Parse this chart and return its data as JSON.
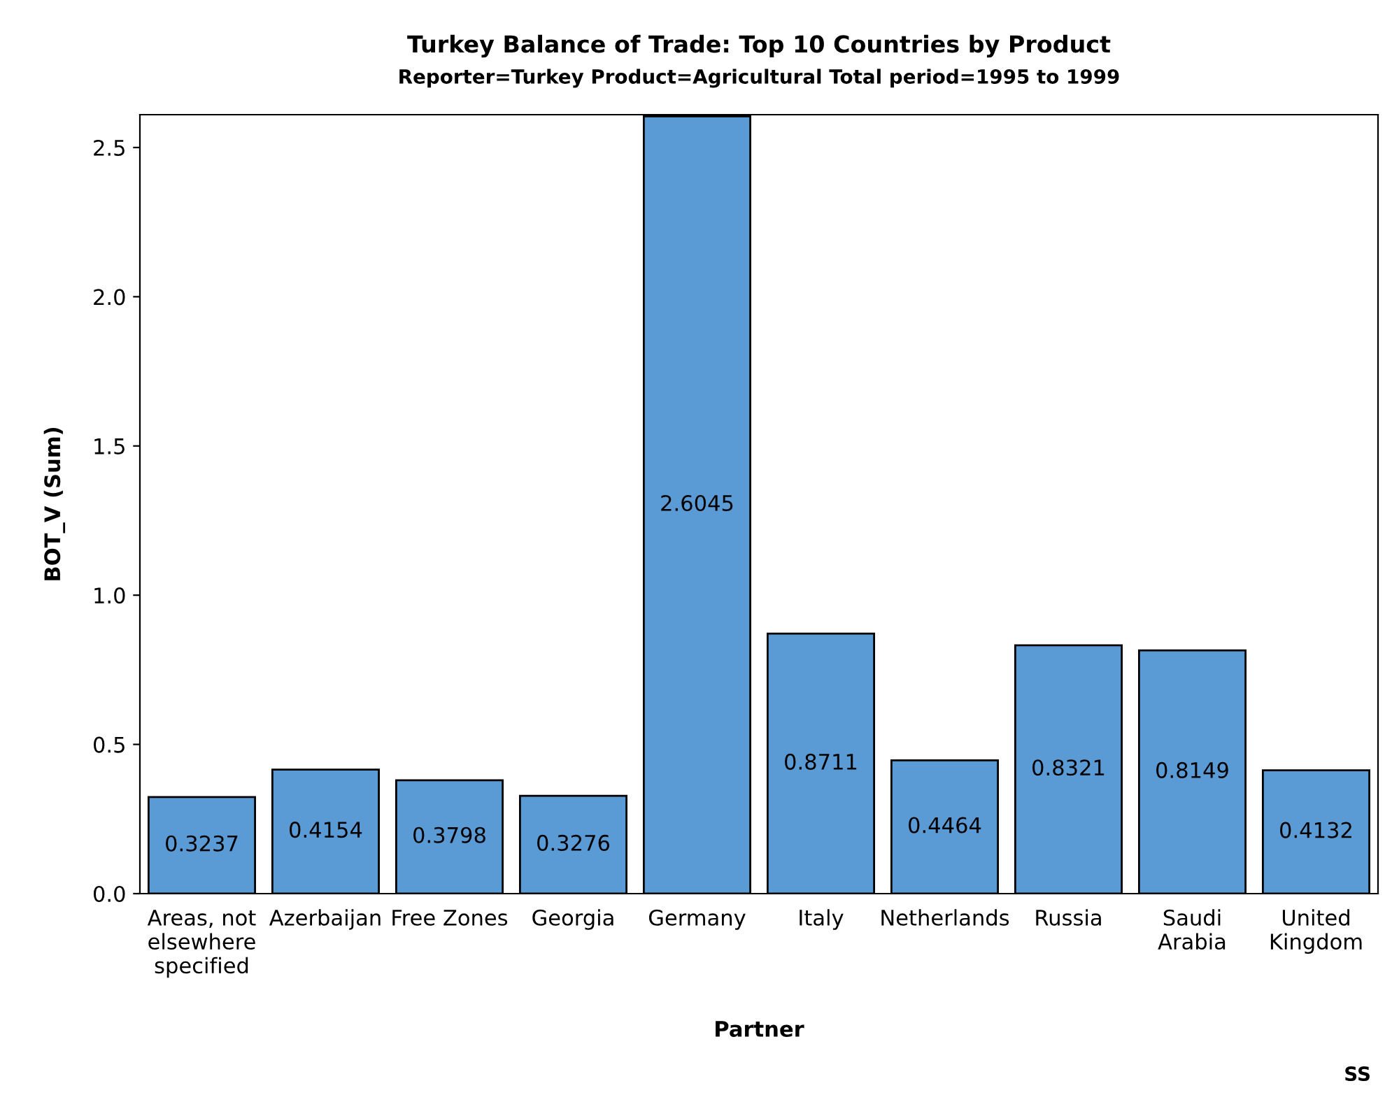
{
  "chart_data": {
    "type": "bar",
    "title": "Turkey Balance of Trade: Top 10 Countries by Product",
    "subtitle": "Reporter=Turkey Product=Agricultural Total period=1995 to 1999",
    "xlabel": "Partner",
    "ylabel": "BOT_V (Sum)",
    "categories": [
      "Areas, not\nelsewhere\nspecified",
      "Azerbaijan",
      "Free Zones",
      "Georgia",
      "Germany",
      "Italy",
      "Netherlands",
      "Russia",
      "Saudi\nArabia",
      "United\nKingdom"
    ],
    "values": [
      0.3237,
      0.4154,
      0.3798,
      0.3276,
      2.6045,
      0.8711,
      0.4464,
      0.8321,
      0.8149,
      0.4132
    ],
    "color": "#5b9bd5",
    "ylim": [
      0,
      2.61
    ],
    "yticks": [
      {
        "value": 0,
        "label": "0.0"
      },
      {
        "value": 0.5,
        "label": "0.5"
      },
      {
        "value": 1,
        "label": "1.0"
      },
      {
        "value": 1.5,
        "label": "1.5"
      },
      {
        "value": 2,
        "label": "2.0"
      },
      {
        "value": 2.5,
        "label": "2.5"
      }
    ],
    "data_labels": true,
    "grid": false,
    "legend": false,
    "annotations": [
      "SS"
    ]
  }
}
